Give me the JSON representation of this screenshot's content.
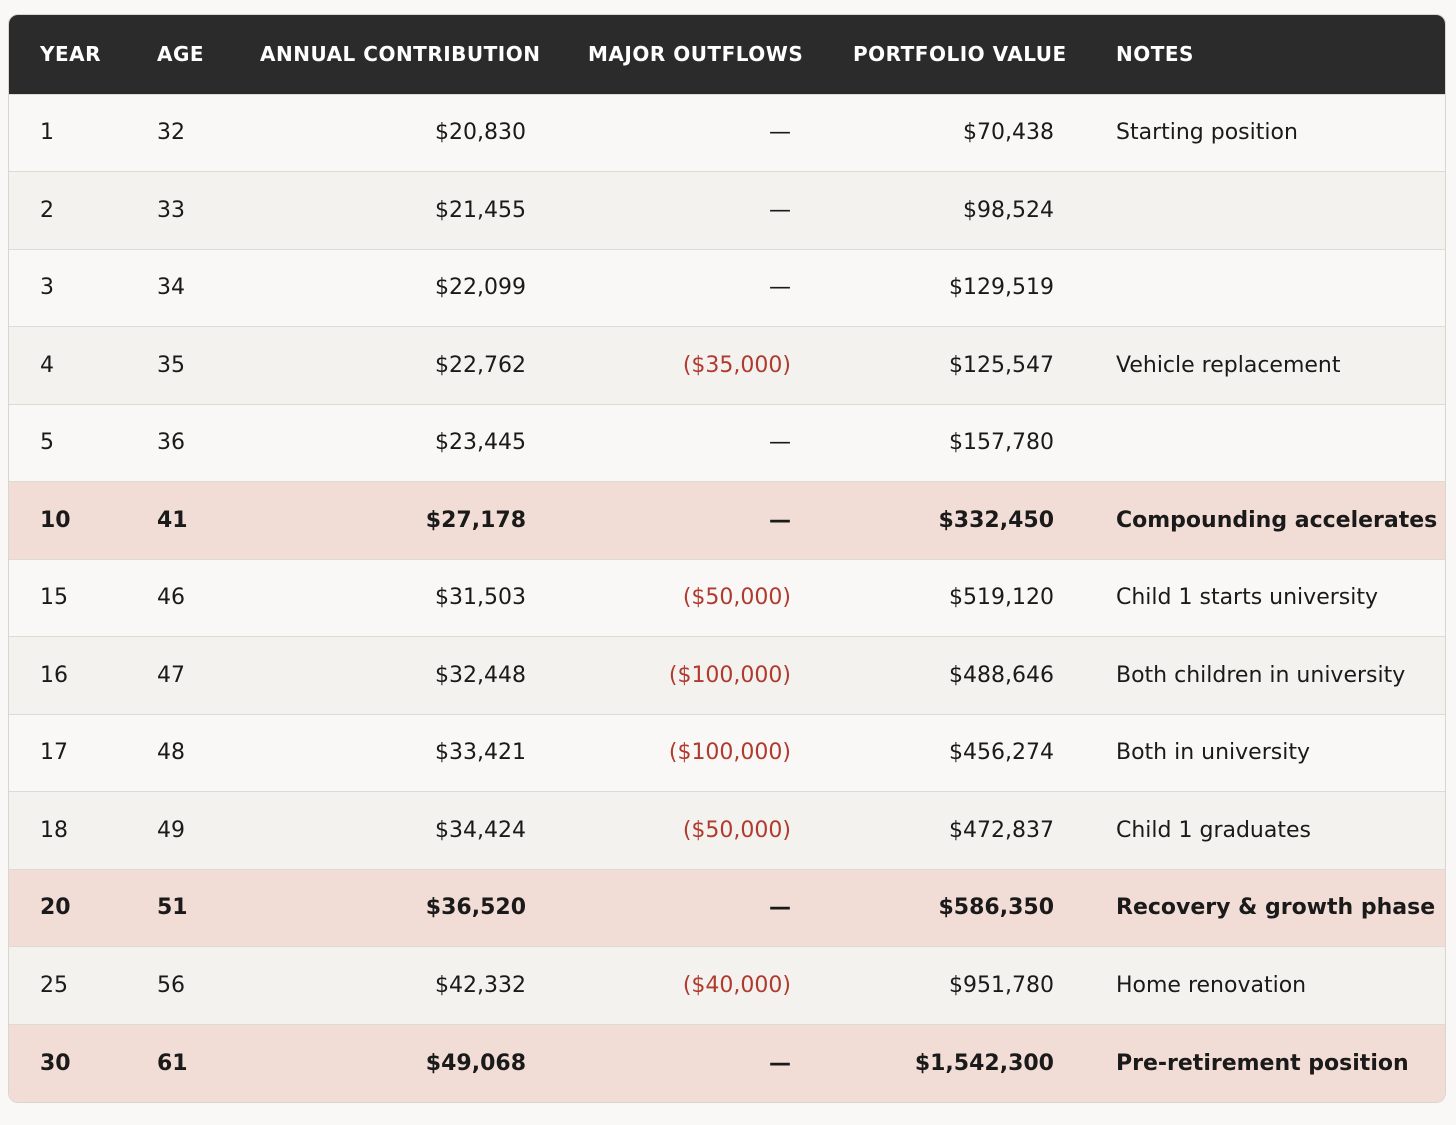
{
  "table": {
    "headers": [
      "YEAR",
      "AGE",
      "ANNUAL CONTRIBUTION",
      "MAJOR OUTFLOWS",
      "PORTFOLIO VALUE",
      "NOTES"
    ],
    "rows": [
      {
        "cells": [
          "1",
          "32",
          "$20,830",
          "—",
          "$70,438",
          "Starting position"
        ],
        "highlight": false
      },
      {
        "cells": [
          "2",
          "33",
          "$21,455",
          "—",
          "$98,524",
          null
        ],
        "highlight": false
      },
      {
        "cells": [
          "3",
          "34",
          "$22,099",
          "—",
          "$129,519",
          null
        ],
        "highlight": false
      },
      {
        "cells": [
          "4",
          "35",
          "$22,762",
          "($35,000)",
          "$125,547",
          "Vehicle replacement"
        ],
        "highlight": false
      },
      {
        "cells": [
          "5",
          "36",
          "$23,445",
          "—",
          "$157,780",
          null
        ],
        "highlight": false
      },
      {
        "cells": [
          "10",
          "41",
          "$27,178",
          "—",
          "$332,450",
          "Compounding accelerates"
        ],
        "highlight": true
      },
      {
        "cells": [
          "15",
          "46",
          "$31,503",
          "($50,000)",
          "$519,120",
          "Child 1 starts university"
        ],
        "highlight": false
      },
      {
        "cells": [
          "16",
          "47",
          "$32,448",
          "($100,000)",
          "$488,646",
          "Both children in university"
        ],
        "highlight": false
      },
      {
        "cells": [
          "17",
          "48",
          "$33,421",
          "($100,000)",
          "$456,274",
          "Both in university"
        ],
        "highlight": false
      },
      {
        "cells": [
          "18",
          "49",
          "$34,424",
          "($50,000)",
          "$472,837",
          "Child 1 graduates"
        ],
        "highlight": false
      },
      {
        "cells": [
          "20",
          "51",
          "$36,520",
          "—",
          "$586,350",
          "Recovery & growth phase"
        ],
        "highlight": true
      },
      {
        "cells": [
          "25",
          "56",
          "$42,332",
          "($40,000)",
          "$951,780",
          "Home renovation"
        ],
        "highlight": false
      },
      {
        "cells": [
          "30",
          "61",
          "$49,068",
          "—",
          "$1,542,300",
          "Pre-retirement position"
        ],
        "highlight": true
      }
    ]
  }
}
